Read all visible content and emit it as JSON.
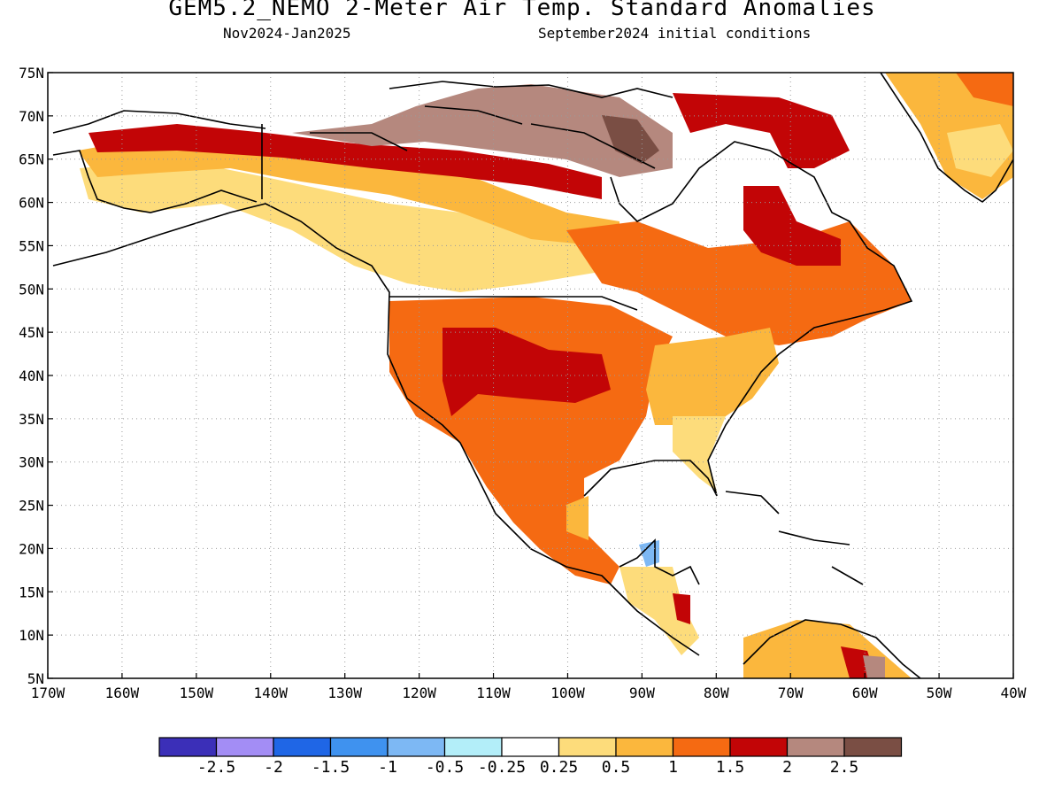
{
  "header": {
    "title": "GEM5.2_NEMO 2-Meter Air Temp. Standard Anomalies",
    "period": "Nov2024-Jan2025",
    "init": "September2024 initial conditions"
  },
  "axes": {
    "lat_labels": [
      "75N",
      "70N",
      "65N",
      "60N",
      "55N",
      "50N",
      "45N",
      "40N",
      "35N",
      "30N",
      "25N",
      "20N",
      "15N",
      "10N",
      "5N"
    ],
    "lon_labels": [
      "170W",
      "160W",
      "150W",
      "140W",
      "130W",
      "120W",
      "110W",
      "100W",
      "90W",
      "80W",
      "70W",
      "60W",
      "50W",
      "40W"
    ],
    "lat_range": [
      5,
      75
    ],
    "lon_range": [
      -170,
      -40
    ],
    "grid": true
  },
  "colorbar": {
    "colors": [
      "#3b2fb8",
      "#a38df5",
      "#1f66e6",
      "#3f92ef",
      "#7db8f4",
      "#b3eef9",
      "#ffffff",
      "#fddc7b",
      "#fbb73d",
      "#f56a12",
      "#c20506",
      "#b5887e",
      "#7a4e44"
    ],
    "labels": [
      "-2.5",
      "-2",
      "-1.5",
      "-1",
      "-0.5",
      "-0.25",
      "0.25",
      "0.5",
      "1",
      "1.5",
      "2",
      "2.5"
    ]
  },
  "colors": {
    "ocean": "#ffffff",
    "coast": "#000000",
    "grid": "#9a9a9a"
  }
}
